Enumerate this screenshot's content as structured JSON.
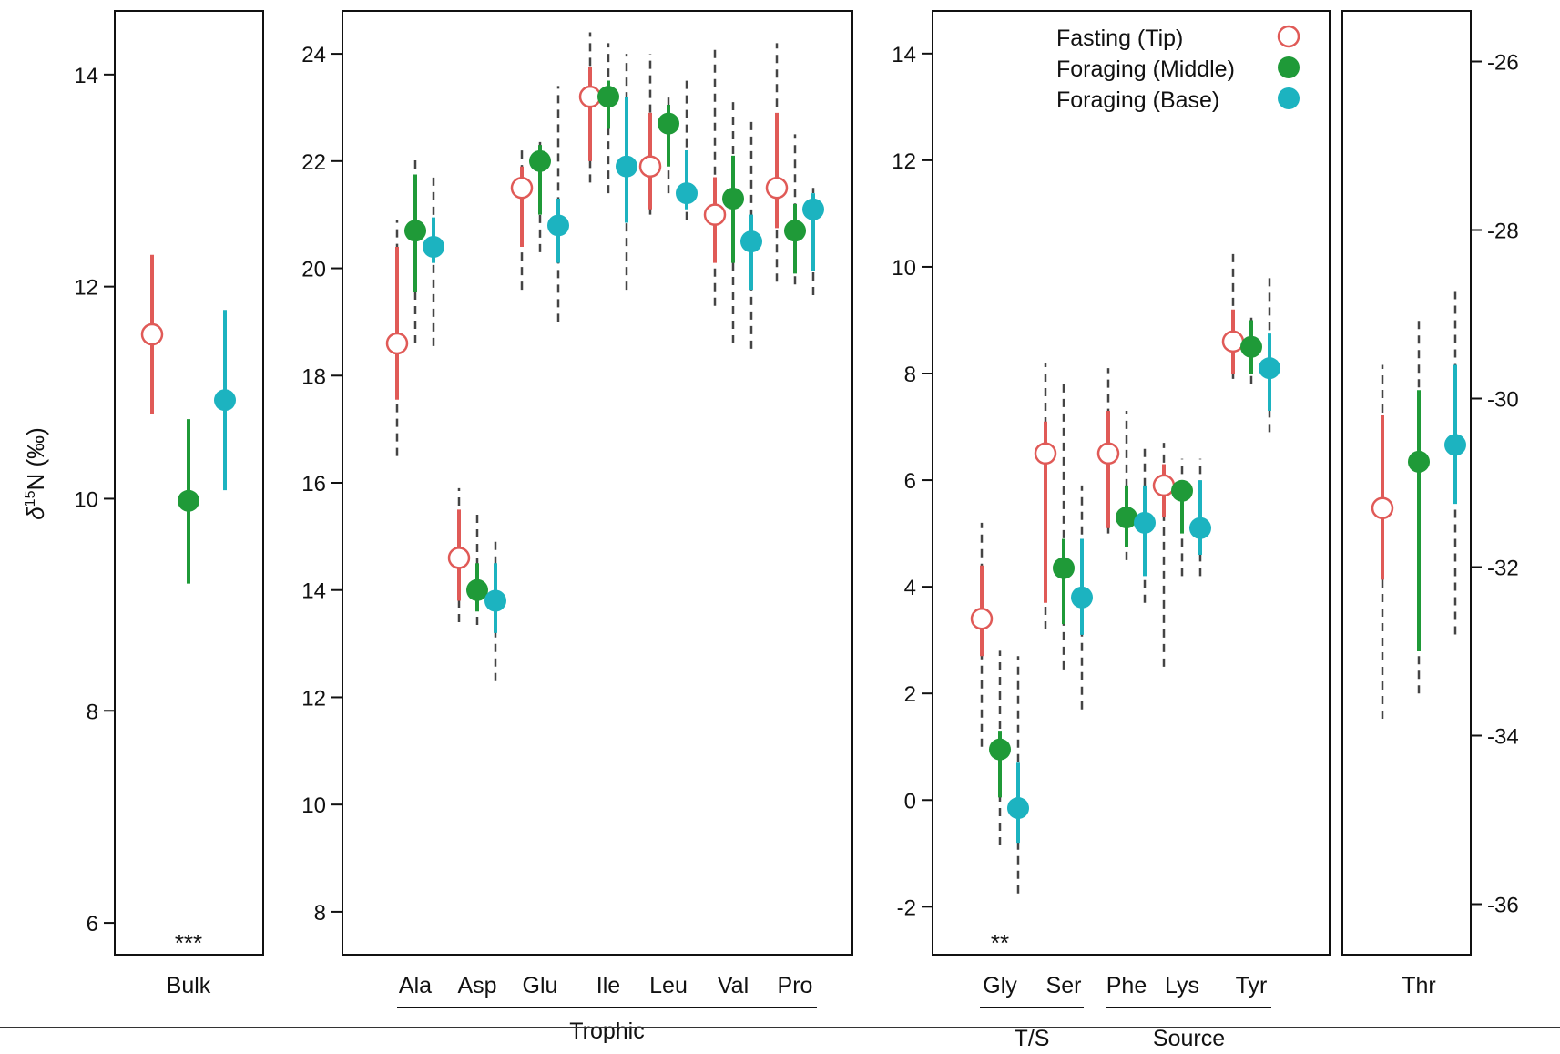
{
  "chart_data": {
    "type": "scatter",
    "ylabel": "δ15N (‰)",
    "series_styles": [
      {
        "name": "Fasting (Tip)",
        "color": "#e05a57",
        "marker": "open-circle"
      },
      {
        "name": "Foraging (Middle)",
        "color": "#1f9a38",
        "marker": "filled-circle"
      },
      {
        "name": "Foraging (Base)",
        "color": "#1cb3c0",
        "marker": "filled-circle"
      }
    ],
    "legend": {
      "placement": "top-right of third panel",
      "entries": [
        "Fasting (Tip)",
        "Foraging (Middle)",
        "Foraging (Base)"
      ]
    },
    "panels": [
      {
        "id": "bulk",
        "ylim": [
          5.7,
          14.6
        ],
        "yticks": [
          6,
          8,
          10,
          12,
          14
        ],
        "ytick_side": "left",
        "categories": [
          "Bulk"
        ],
        "significance": [
          "***"
        ],
        "points": [
          [
            {
              "y": 11.55,
              "lo": 10.8,
              "hi": 12.3
            },
            {
              "y": 9.98,
              "lo": 9.2,
              "hi": 10.75
            },
            {
              "y": 10.93,
              "lo": 10.08,
              "hi": 11.78
            }
          ]
        ]
      },
      {
        "id": "trophic",
        "ylim": [
          7.2,
          24.8
        ],
        "yticks": [
          8,
          10,
          12,
          14,
          16,
          18,
          20,
          22,
          24
        ],
        "ytick_side": "left",
        "categories": [
          "Ala",
          "Asp",
          "Glu",
          "Ile",
          "Leu",
          "Val",
          "Pro"
        ],
        "group_label": "Trophic",
        "points": [
          [
            {
              "y": 18.6,
              "lo": 17.55,
              "hi": 20.4,
              "dlo": 16.5,
              "dhi": 20.9
            },
            {
              "y": 20.7,
              "lo": 19.55,
              "hi": 21.75,
              "dlo": 18.6,
              "dhi": 22.1
            },
            {
              "y": 20.4,
              "lo": 20.1,
              "hi": 20.95,
              "dlo": 18.55,
              "dhi": 21.75
            }
          ],
          [
            {
              "y": 14.6,
              "lo": 13.8,
              "hi": 15.5,
              "dlo": 13.4,
              "dhi": 15.9
            },
            {
              "y": 14.0,
              "lo": 13.6,
              "hi": 14.5,
              "dlo": 13.35,
              "dhi": 15.5
            },
            {
              "y": 13.8,
              "lo": 13.2,
              "hi": 14.5,
              "dlo": 12.3,
              "dhi": 15.0
            }
          ],
          [
            {
              "y": 21.5,
              "lo": 20.4,
              "hi": 21.9,
              "dlo": 19.6,
              "dhi": 22.3
            },
            {
              "y": 22.0,
              "lo": 21.0,
              "hi": 22.3,
              "dlo": 20.3,
              "dhi": 22.4
            },
            {
              "y": 20.8,
              "lo": 20.1,
              "hi": 21.3,
              "dlo": 19.0,
              "dhi": 23.4
            }
          ],
          [
            {
              "y": 23.2,
              "lo": 22.0,
              "hi": 23.75,
              "dlo": 21.6,
              "dhi": 24.4
            },
            {
              "y": 23.2,
              "lo": 22.6,
              "hi": 23.5,
              "dlo": 21.4,
              "dhi": 24.2
            },
            {
              "y": 21.9,
              "lo": 20.85,
              "hi": 23.2,
              "dlo": 19.6,
              "dhi": 24.0
            }
          ],
          [
            {
              "y": 21.9,
              "lo": 21.1,
              "hi": 22.9,
              "dlo": 21.0,
              "dhi": 24.0
            },
            {
              "y": 22.7,
              "lo": 21.9,
              "hi": 23.05,
              "dlo": 21.4,
              "dhi": 23.3
            },
            {
              "y": 21.4,
              "lo": 21.1,
              "hi": 22.2,
              "dlo": 20.9,
              "dhi": 23.6
            }
          ],
          [
            {
              "y": 21.0,
              "lo": 20.1,
              "hi": 21.7,
              "dlo": 19.3,
              "dhi": 24.1
            },
            {
              "y": 21.3,
              "lo": 20.1,
              "hi": 22.1,
              "dlo": 18.6,
              "dhi": 23.1
            },
            {
              "y": 20.5,
              "lo": 19.6,
              "hi": 21.0,
              "dlo": 18.5,
              "dhi": 22.8
            }
          ],
          [
            {
              "y": 21.5,
              "lo": 20.75,
              "hi": 22.9,
              "dlo": 19.75,
              "dhi": 24.2
            },
            {
              "y": 20.7,
              "lo": 19.9,
              "hi": 21.2,
              "dlo": 19.7,
              "dhi": 22.5
            },
            {
              "y": 21.1,
              "lo": 19.95,
              "hi": 21.4,
              "dlo": 19.5,
              "dhi": 21.5
            }
          ]
        ]
      },
      {
        "id": "ts-source",
        "ylim": [
          -2.9,
          14.8
        ],
        "yticks": [
          -2,
          0,
          2,
          4,
          6,
          8,
          10,
          12,
          14
        ],
        "ytick_side": "left",
        "categories": [
          "Gly",
          "Ser",
          "Phe",
          "Lys",
          "Tyr"
        ],
        "significance": [
          "**",
          "",
          "",
          "",
          ""
        ],
        "groups": [
          {
            "label": "T/S",
            "members": [
              "Gly",
              "Ser"
            ]
          },
          {
            "label": "Source",
            "members": [
              "Phe",
              "Lys",
              "Tyr"
            ]
          }
        ],
        "points": [
          [
            {
              "y": 3.4,
              "lo": 2.7,
              "hi": 4.4,
              "dlo": 1.0,
              "dhi": 5.2
            },
            {
              "y": 0.95,
              "lo": 0.05,
              "hi": 1.3,
              "dlo": -0.85,
              "dhi": 2.8
            },
            {
              "y": -0.15,
              "lo": -0.8,
              "hi": 0.7,
              "dlo": -1.75,
              "dhi": 2.7
            }
          ],
          [
            {
              "y": 6.5,
              "lo": 3.7,
              "hi": 7.1,
              "dlo": 3.2,
              "dhi": 8.2
            },
            {
              "y": 4.35,
              "lo": 3.3,
              "hi": 4.9,
              "dlo": 2.45,
              "dhi": 7.8
            },
            {
              "y": 3.8,
              "lo": 3.1,
              "hi": 4.9,
              "dlo": 1.7,
              "dhi": 5.9
            }
          ],
          [
            {
              "y": 6.5,
              "lo": 5.1,
              "hi": 7.3,
              "dlo": 5.0,
              "dhi": 8.1
            },
            {
              "y": 5.3,
              "lo": 4.75,
              "hi": 5.9,
              "dlo": 4.5,
              "dhi": 7.3
            },
            {
              "y": 5.2,
              "lo": 4.2,
              "hi": 5.9,
              "dlo": 3.7,
              "dhi": 6.7
            }
          ],
          [
            {
              "y": 5.9,
              "lo": 5.3,
              "hi": 6.3,
              "dlo": 2.5,
              "dhi": 6.7
            },
            {
              "y": 5.8,
              "lo": 5.0,
              "hi": 5.95,
              "dlo": 4.2,
              "dhi": 6.4
            },
            {
              "y": 5.1,
              "lo": 4.6,
              "hi": 6.0,
              "dlo": 4.2,
              "dhi": 6.4
            }
          ],
          [
            {
              "y": 8.6,
              "lo": 8.0,
              "hi": 9.2,
              "dlo": 7.9,
              "dhi": 10.3
            },
            {
              "y": 8.5,
              "lo": 8.0,
              "hi": 9.0,
              "dlo": 7.8,
              "dhi": 9.05
            },
            {
              "y": 8.1,
              "lo": 7.3,
              "hi": 8.75,
              "dlo": 6.9,
              "dhi": 9.9
            }
          ]
        ]
      },
      {
        "id": "thr",
        "ylim": [
          -36.6,
          -25.4
        ],
        "yticks": [
          -26,
          -28,
          -30,
          -32,
          -34,
          -36
        ],
        "ytick_side": "right",
        "categories": [
          "Thr"
        ],
        "points": [
          [
            {
              "y": -31.3,
              "lo": -32.15,
              "hi": -30.2,
              "dlo": -33.8,
              "dhi": -29.6
            },
            {
              "y": -30.75,
              "lo": -33.0,
              "hi": -29.9,
              "dlo": -33.5,
              "dhi": -29.05
            },
            {
              "y": -30.55,
              "lo": -31.25,
              "hi": -29.6,
              "dlo": -32.8,
              "dhi": -28.7
            }
          ]
        ]
      }
    ]
  }
}
